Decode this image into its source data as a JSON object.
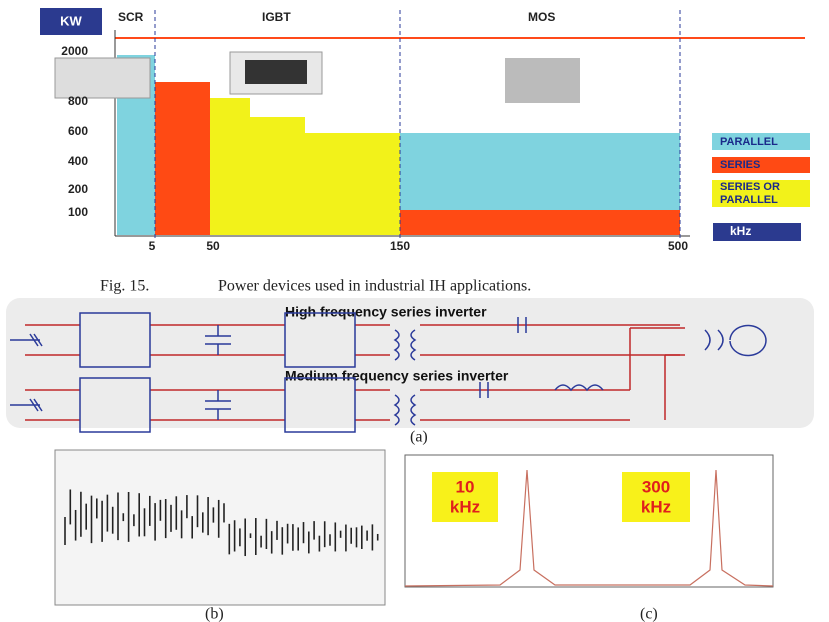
{
  "chart_panel": {
    "unit_label": "KW",
    "regions": [
      "SCR",
      "IGBT",
      "MOS"
    ],
    "y_labels": [
      "2000",
      "800",
      "600",
      "400",
      "200",
      "100"
    ],
    "x_labels": [
      "5",
      "50",
      "150",
      "500"
    ],
    "x_unit": "kHz",
    "legend": [
      [
        "PARALLEL"
      ],
      [
        "SERIES"
      ],
      [
        "SERIES OR",
        "PARALLEL"
      ]
    ]
  },
  "caption": {
    "label": "Fig. 15.",
    "text": "Power devices used in industrial IH applications."
  },
  "circuit": {
    "titles": [
      "High frequency series inverter",
      "Medium frequency series inverter"
    ],
    "label": "(a)"
  },
  "waveform": {
    "label": "(b)"
  },
  "spectrum": {
    "peaks": [
      [
        "10",
        "kHz"
      ],
      [
        "300",
        "kHz"
      ]
    ],
    "label": "(c)"
  }
}
